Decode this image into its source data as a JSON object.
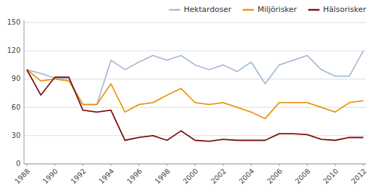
{
  "chart_data": {
    "type": "line",
    "x": [
      1988,
      1989,
      1990,
      1991,
      1992,
      1993,
      1994,
      1995,
      1996,
      1997,
      1998,
      1999,
      2000,
      2001,
      2002,
      2003,
      2004,
      2005,
      2006,
      2007,
      2008,
      2009,
      2010,
      2011,
      2012
    ],
    "series": [
      {
        "name": "Hektardoser",
        "color": "#a8bcd4",
        "values": [
          100,
          96,
          91,
          90,
          63,
          63,
          110,
          100,
          108,
          115,
          110,
          115,
          105,
          100,
          105,
          98,
          108,
          85,
          105,
          110,
          115,
          100,
          93,
          93,
          120
        ]
      },
      {
        "name": "Miljörisker",
        "color": "#e8960e",
        "values": [
          100,
          88,
          90,
          88,
          63,
          63,
          85,
          55,
          63,
          65,
          73,
          80,
          65,
          63,
          65,
          60,
          55,
          48,
          65,
          65,
          65,
          60,
          55,
          65,
          67
        ]
      },
      {
        "name": "Hälsorisker",
        "color": "#7a1010",
        "values": [
          100,
          73,
          92,
          92,
          57,
          55,
          57,
          25,
          28,
          30,
          25,
          35,
          25,
          24,
          26,
          25,
          25,
          25,
          32,
          32,
          31,
          26,
          25,
          28,
          28
        ]
      }
    ],
    "xlim": [
      1987.8,
      2012.2
    ],
    "xticks": [
      1988,
      1990,
      1992,
      1994,
      1996,
      1998,
      2000,
      2002,
      2004,
      2006,
      2008,
      2010,
      2012
    ],
    "ylim": [
      0,
      153
    ],
    "yticks": [
      0,
      30,
      60,
      90,
      120,
      150
    ],
    "grid": true,
    "legend": "upper-right"
  }
}
